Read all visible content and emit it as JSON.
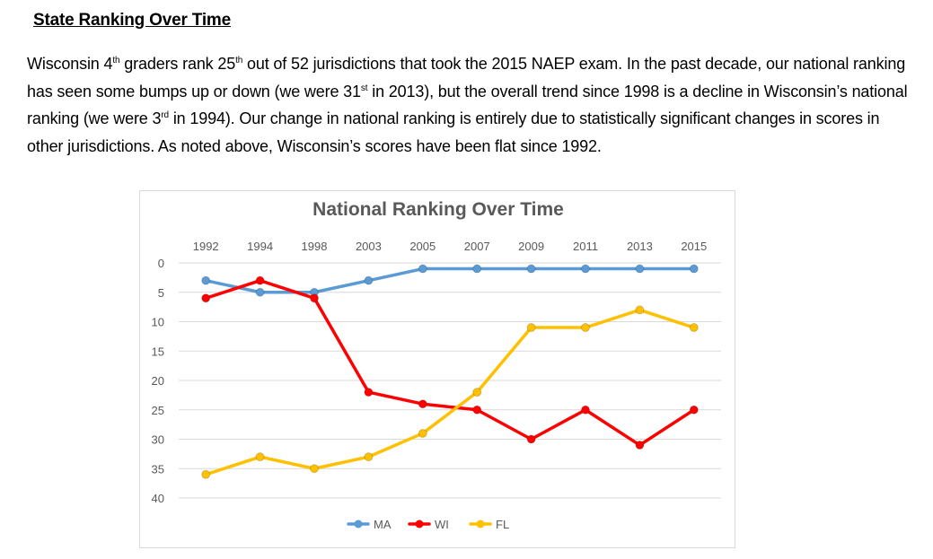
{
  "document": {
    "heading": "State Ranking Over Time",
    "paragraph": {
      "p1": "Wisconsin 4",
      "s1": "th",
      "p2": " graders rank 25",
      "s2": "th",
      "p3": " out of 52 jurisdictions that took the 2015 NAEP exam. In the past decade, our national ranking has seen some bumps up or down (we were 31",
      "s3": "st",
      "p4": " in 2013), but the overall trend since 1998 is a decline in Wisconsin’s national ranking (we were 3",
      "s4": "rd",
      "p5": " in 1994). Our change in national ranking is entirely due to statistically significant changes in scores in other jurisdictions. As noted above, Wisconsin’s scores have been flat since 1992."
    }
  },
  "chart_data": {
    "type": "line",
    "title": "National Ranking Over Time",
    "categories": [
      "1992",
      "1994",
      "1998",
      "2003",
      "2005",
      "2007",
      "2009",
      "2011",
      "2013",
      "2015"
    ],
    "y_ticks": [
      0,
      5,
      10,
      15,
      20,
      25,
      30,
      35,
      40
    ],
    "ylim": [
      0,
      40
    ],
    "y_inverted": true,
    "x_axis_position": "top",
    "grid": true,
    "legend": "bottom",
    "series": [
      {
        "name": "MA",
        "color": "#5B9BD5",
        "values": [
          3,
          5,
          5,
          3,
          1,
          1,
          1,
          1,
          1,
          1
        ]
      },
      {
        "name": "WI",
        "color": "#FF0000",
        "values": [
          6,
          3,
          6,
          22,
          24,
          25,
          30,
          25,
          31,
          25
        ]
      },
      {
        "name": "FL",
        "color": "#FFC000",
        "values": [
          36,
          33,
          35,
          33,
          29,
          22,
          11,
          11,
          8,
          11
        ]
      }
    ]
  }
}
